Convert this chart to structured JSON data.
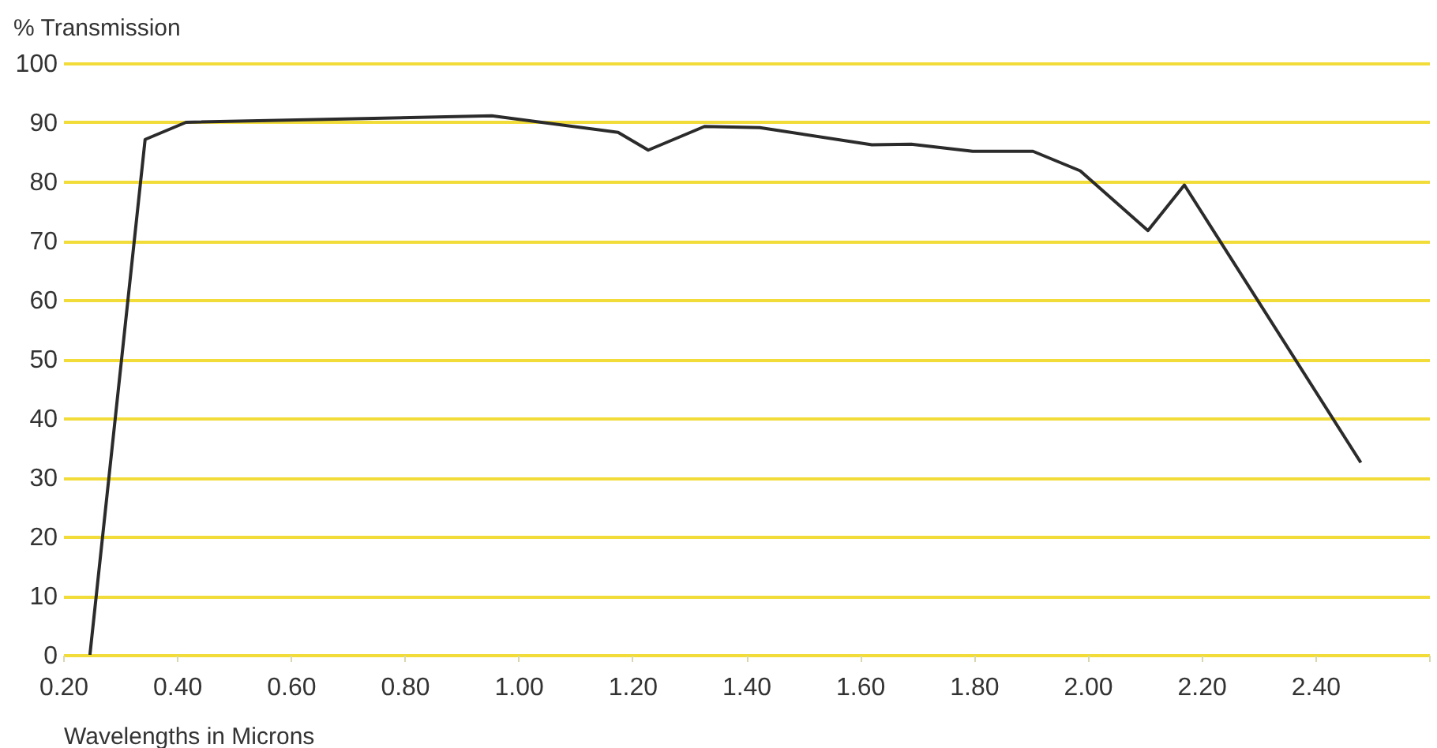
{
  "chart_data": {
    "type": "line",
    "xlabel": "Wavelengths in Microns",
    "ylabel": "% Transmission",
    "x": [
      0.247,
      0.344,
      0.416,
      0.953,
      1.175,
      1.228,
      1.327,
      1.424,
      1.621,
      1.69,
      1.798,
      1.904,
      1.987,
      2.106,
      2.17,
      2.48
    ],
    "series": [
      {
        "color": "#2b2b2b",
        "values": [
          0,
          87.1,
          90.0,
          91.1,
          88.3,
          85.3,
          89.3,
          89.1,
          86.2,
          86.3,
          85.1,
          85.1,
          81.8,
          71.7,
          79.4,
          32.5
        ]
      }
    ],
    "xlim": [
      0.2,
      2.6
    ],
    "xticks": [
      {
        "value": 0.2,
        "label": "0.20"
      },
      {
        "value": 0.4,
        "label": "0.40"
      },
      {
        "value": 0.6,
        "label": "0.60"
      },
      {
        "value": 0.8,
        "label": "0.80"
      },
      {
        "value": 1.0,
        "label": "1.00"
      },
      {
        "value": 1.2,
        "label": "1.20"
      },
      {
        "value": 1.4,
        "label": "1.40"
      },
      {
        "value": 1.6,
        "label": "1.60"
      },
      {
        "value": 1.8,
        "label": "1.80"
      },
      {
        "value": 2.0,
        "label": "2.00"
      },
      {
        "value": 2.2,
        "label": "2.20"
      },
      {
        "value": 2.4,
        "label": "2.40"
      },
      {
        "value": 2.6,
        "label": null
      }
    ],
    "ylim": [
      0,
      100
    ],
    "yticks": [
      0,
      10,
      20,
      30,
      40,
      50,
      60,
      70,
      80,
      90,
      100
    ],
    "grid": "y",
    "line_style": "solid"
  }
}
